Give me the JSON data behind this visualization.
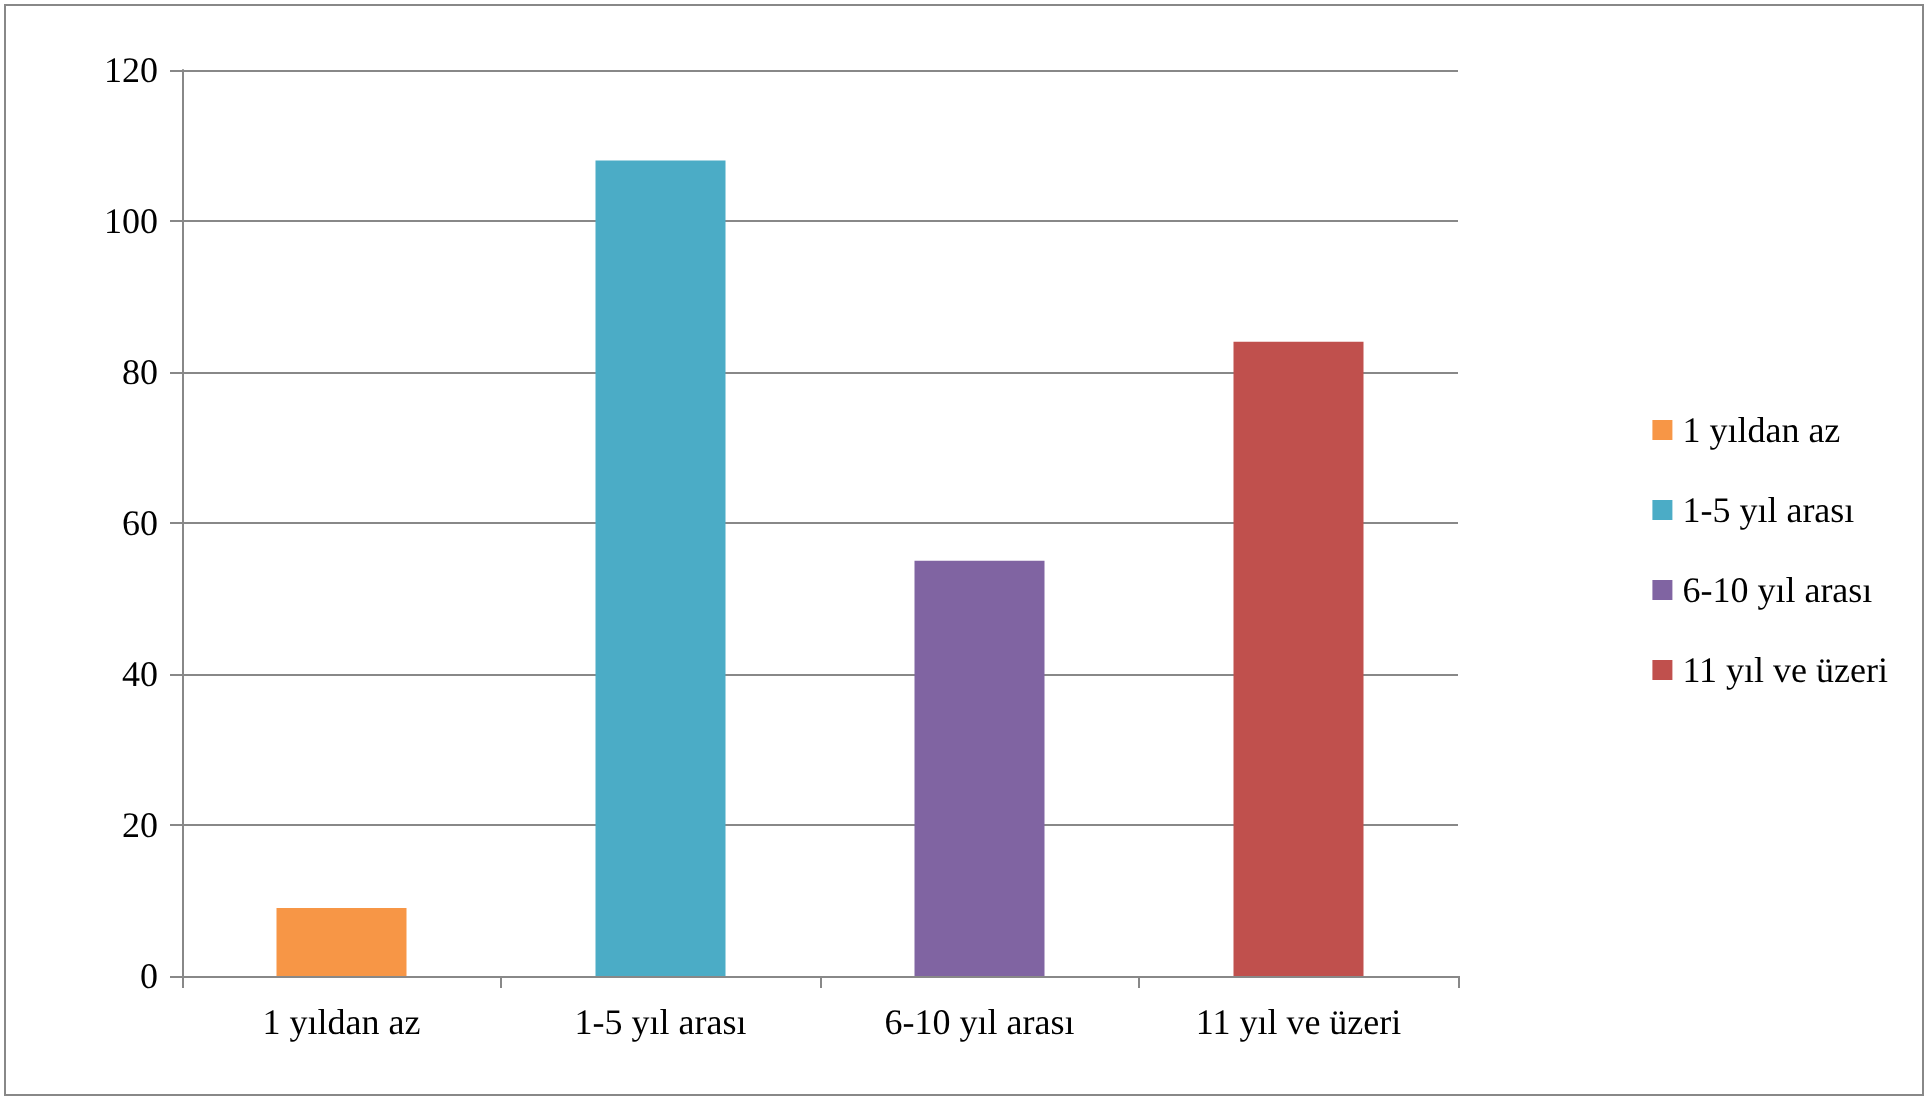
{
  "chart_data": {
    "type": "bar",
    "categories": [
      "1 yıldan az",
      "1-5 yıl arası",
      "6-10 yıl arası",
      "11 yıl ve üzeri"
    ],
    "series": [
      {
        "name": "1 yıldan az",
        "color": "#f79646",
        "values": [
          9,
          null,
          null,
          null
        ]
      },
      {
        "name": "1-5 yıl arası",
        "color": "#4bacc6",
        "values": [
          null,
          108,
          null,
          null
        ]
      },
      {
        "name": "6-10 yıl arası",
        "color": "#8064a2",
        "values": [
          null,
          null,
          55,
          null
        ]
      },
      {
        "name": "11 yıl ve üzeri",
        "color": "#c0504d",
        "values": [
          null,
          null,
          null,
          84
        ]
      }
    ],
    "ylim": [
      0,
      120
    ],
    "yticks": [
      0,
      20,
      40,
      60,
      80,
      100,
      120
    ],
    "grid": "y",
    "legend": "right"
  }
}
